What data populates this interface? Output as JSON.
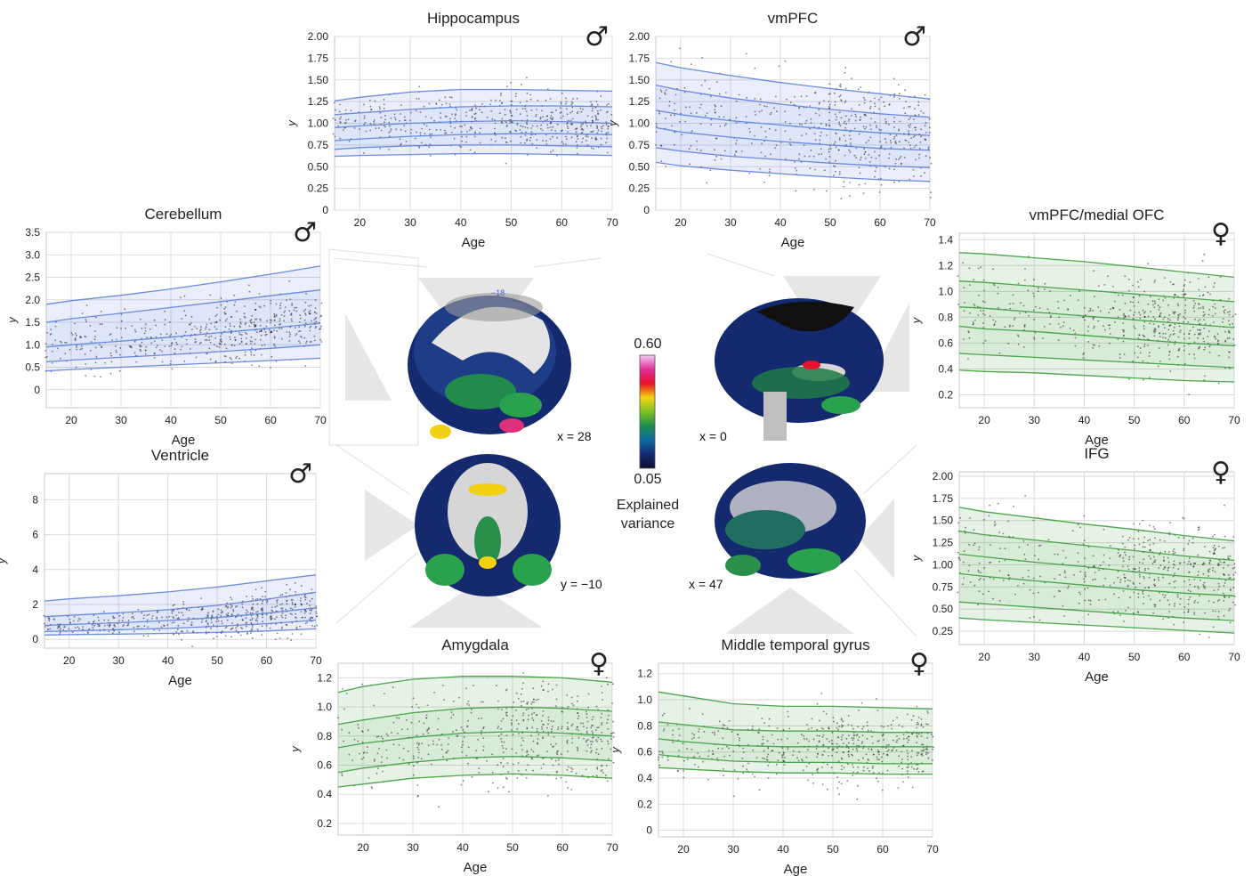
{
  "colors": {
    "male": "#5b7fe0",
    "female": "#3a9c3a",
    "grid": "#d9d9d9",
    "frame": "#c8c8c8",
    "dots": "#1a1a1a"
  },
  "brain": {
    "labels": [
      "x = 28",
      "y = −10",
      "x = 0",
      "x = 47"
    ],
    "small_label": "−18"
  },
  "colorbar": {
    "max_label": "0.60",
    "min_label": "0.05",
    "title_line1": "Explained",
    "title_line2": "variance",
    "stops": [
      "#f5c8f5",
      "#e0309a",
      "#e8102a",
      "#f4d30f",
      "#7ac228",
      "#1b8d4a",
      "#0e6aa0",
      "#142a73",
      "#0a0f2e"
    ]
  },
  "chart_data": [
    {
      "id": "hippocampus",
      "type": "line",
      "title": "Hippocampus",
      "sex": "male",
      "sex_symbol": "♂",
      "xlabel": "Age",
      "ylabel": "y",
      "xlim": [
        15,
        70
      ],
      "ylim": [
        0,
        2.0
      ],
      "xticks": [
        20,
        30,
        40,
        50,
        60,
        70
      ],
      "yticks": [
        "0",
        "0.25",
        "0.50",
        "0.75",
        "1.00",
        "1.25",
        "1.50",
        "1.75",
        "2.00"
      ],
      "x": [
        15,
        20,
        30,
        40,
        50,
        60,
        70
      ],
      "series": [
        {
          "values": [
            0.62,
            0.63,
            0.64,
            0.65,
            0.65,
            0.64,
            0.63
          ]
        },
        {
          "values": [
            0.7,
            0.72,
            0.74,
            0.75,
            0.75,
            0.74,
            0.73
          ]
        },
        {
          "values": [
            0.8,
            0.82,
            0.85,
            0.87,
            0.88,
            0.88,
            0.87
          ]
        },
        {
          "values": [
            0.95,
            0.97,
            1.0,
            1.02,
            1.03,
            1.02,
            1.0
          ]
        },
        {
          "values": [
            1.1,
            1.12,
            1.16,
            1.19,
            1.2,
            1.2,
            1.19
          ]
        },
        {
          "values": [
            1.26,
            1.3,
            1.36,
            1.39,
            1.39,
            1.38,
            1.37
          ]
        }
      ],
      "cluster": {
        "center": 0.84,
        "spread": 0.17
      }
    },
    {
      "id": "vmpfc",
      "type": "line",
      "title": "vmPFC",
      "sex": "male",
      "sex_symbol": "♂",
      "xlabel": "Age",
      "ylabel": "y",
      "xlim": [
        15,
        70
      ],
      "ylim": [
        0,
        2.0
      ],
      "xticks": [
        20,
        30,
        40,
        50,
        60,
        70
      ],
      "yticks": [
        "0",
        "0.25",
        "0.50",
        "0.75",
        "1.00",
        "1.25",
        "1.50",
        "1.75",
        "2.00"
      ],
      "x": [
        15,
        20,
        30,
        40,
        50,
        60,
        70
      ],
      "series": [
        {
          "values": [
            0.55,
            0.51,
            0.46,
            0.42,
            0.38,
            0.35,
            0.33
          ]
        },
        {
          "values": [
            0.72,
            0.68,
            0.62,
            0.58,
            0.54,
            0.51,
            0.49
          ]
        },
        {
          "values": [
            0.95,
            0.9,
            0.84,
            0.79,
            0.75,
            0.71,
            0.69
          ]
        },
        {
          "values": [
            1.15,
            1.1,
            1.03,
            0.98,
            0.93,
            0.89,
            0.86
          ]
        },
        {
          "values": [
            1.44,
            1.38,
            1.29,
            1.22,
            1.16,
            1.11,
            1.07
          ]
        },
        {
          "values": [
            1.7,
            1.64,
            1.55,
            1.47,
            1.4,
            1.34,
            1.28
          ]
        }
      ],
      "cluster": {
        "center": 0.8,
        "spread": 0.3
      }
    },
    {
      "id": "cerebellum",
      "type": "line",
      "title": "Cerebellum",
      "sex": "male",
      "sex_symbol": "♂",
      "xlabel": "Age",
      "ylabel": "y",
      "xlim": [
        15,
        70
      ],
      "ylim": [
        -0.4,
        3.5
      ],
      "xticks": [
        20,
        30,
        40,
        50,
        60,
        70
      ],
      "yticks": [
        "0",
        "0.5",
        "1.0",
        "1.5",
        "2.0",
        "2.5",
        "3.0",
        "3.5"
      ],
      "x": [
        15,
        20,
        30,
        40,
        50,
        60,
        70
      ],
      "series": [
        {
          "values": [
            0.42,
            0.45,
            0.5,
            0.55,
            0.6,
            0.65,
            0.7
          ]
        },
        {
          "values": [
            0.62,
            0.66,
            0.72,
            0.78,
            0.85,
            0.92,
            1.0
          ]
        },
        {
          "values": [
            0.95,
            1.0,
            1.08,
            1.17,
            1.27,
            1.37,
            1.48
          ]
        },
        {
          "values": [
            1.5,
            1.58,
            1.7,
            1.83,
            1.96,
            2.09,
            2.22
          ]
        },
        {
          "values": [
            1.9,
            1.98,
            2.1,
            2.24,
            2.4,
            2.57,
            2.75
          ]
        }
      ],
      "cluster": {
        "center": 0.95,
        "spread": 0.35
      }
    },
    {
      "id": "ventricle",
      "type": "line",
      "title": "Ventricle",
      "sex": "male",
      "sex_symbol": "♂",
      "xlabel": "Age",
      "ylabel": "y",
      "xlim": [
        15,
        70
      ],
      "ylim": [
        -0.5,
        9.5
      ],
      "xticks": [
        20,
        30,
        40,
        50,
        60,
        70
      ],
      "yticks": [
        "0",
        "2",
        "4",
        "6",
        "8"
      ],
      "x": [
        15,
        20,
        30,
        40,
        50,
        60,
        70
      ],
      "series": [
        {
          "values": [
            0.25,
            0.27,
            0.3,
            0.34,
            0.4,
            0.48,
            0.6
          ]
        },
        {
          "values": [
            0.45,
            0.48,
            0.55,
            0.63,
            0.75,
            0.9,
            1.1
          ]
        },
        {
          "values": [
            0.8,
            0.85,
            0.95,
            1.08,
            1.25,
            1.5,
            1.8
          ]
        },
        {
          "values": [
            1.3,
            1.38,
            1.52,
            1.7,
            1.95,
            2.3,
            2.7
          ]
        },
        {
          "values": [
            2.2,
            2.32,
            2.5,
            2.72,
            3.0,
            3.35,
            3.7
          ]
        }
      ],
      "cluster": {
        "center": 0.9,
        "spread": 0.55
      }
    },
    {
      "id": "vmpfc-ofc",
      "type": "line",
      "title": "vmPFC/medial OFC",
      "sex": "female",
      "sex_symbol": "♀",
      "xlabel": "Age",
      "ylabel": "y",
      "xlim": [
        15,
        70
      ],
      "ylim": [
        0.1,
        1.45
      ],
      "xticks": [
        20,
        30,
        40,
        50,
        60,
        70
      ],
      "yticks": [
        "0.2",
        "0.4",
        "0.6",
        "0.8",
        "1.0",
        "1.2",
        "1.4"
      ],
      "x": [
        15,
        20,
        30,
        40,
        50,
        60,
        70
      ],
      "series": [
        {
          "values": [
            0.39,
            0.38,
            0.37,
            0.35,
            0.33,
            0.31,
            0.3
          ]
        },
        {
          "values": [
            0.52,
            0.51,
            0.49,
            0.47,
            0.45,
            0.43,
            0.41
          ]
        },
        {
          "values": [
            0.73,
            0.71,
            0.69,
            0.66,
            0.63,
            0.6,
            0.58
          ]
        },
        {
          "values": [
            0.88,
            0.87,
            0.84,
            0.81,
            0.78,
            0.75,
            0.72
          ]
        },
        {
          "values": [
            1.08,
            1.07,
            1.04,
            1.01,
            0.98,
            0.95,
            0.92
          ]
        },
        {
          "values": [
            1.3,
            1.29,
            1.26,
            1.23,
            1.19,
            1.15,
            1.11
          ]
        }
      ],
      "cluster": {
        "center": 0.65,
        "spread": 0.18
      }
    },
    {
      "id": "ifg",
      "type": "line",
      "title": "IFG",
      "sex": "female",
      "sex_symbol": "♀",
      "xlabel": "Age",
      "ylabel": "y",
      "xlim": [
        15,
        70
      ],
      "ylim": [
        0.1,
        2.05
      ],
      "xticks": [
        20,
        30,
        40,
        50,
        60,
        70
      ],
      "yticks": [
        "0.25",
        "0.50",
        "0.75",
        "1.00",
        "1.25",
        "1.50",
        "1.75",
        "2.00"
      ],
      "x": [
        15,
        20,
        30,
        40,
        50,
        60,
        70
      ],
      "series": [
        {
          "values": [
            0.4,
            0.38,
            0.35,
            0.32,
            0.29,
            0.26,
            0.23
          ]
        },
        {
          "values": [
            0.58,
            0.56,
            0.52,
            0.48,
            0.44,
            0.4,
            0.37
          ]
        },
        {
          "values": [
            0.9,
            0.87,
            0.82,
            0.77,
            0.72,
            0.68,
            0.65
          ]
        },
        {
          "values": [
            1.12,
            1.09,
            1.03,
            0.98,
            0.92,
            0.87,
            0.83
          ]
        },
        {
          "values": [
            1.38,
            1.34,
            1.28,
            1.22,
            1.16,
            1.1,
            1.05
          ]
        },
        {
          "values": [
            1.65,
            1.6,
            1.53,
            1.46,
            1.4,
            1.33,
            1.27
          ]
        }
      ],
      "cluster": {
        "center": 0.78,
        "spread": 0.28
      }
    },
    {
      "id": "amygdala",
      "type": "line",
      "title": "Amygdala",
      "sex": "female",
      "sex_symbol": "♀",
      "xlabel": "Age",
      "ylabel": "y",
      "xlim": [
        15,
        70
      ],
      "ylim": [
        0.12,
        1.3
      ],
      "xticks": [
        20,
        30,
        40,
        50,
        60,
        70
      ],
      "yticks": [
        "0.2",
        "0.4",
        "0.6",
        "0.8",
        "1.0",
        "1.2"
      ],
      "x": [
        15,
        20,
        30,
        40,
        50,
        60,
        70
      ],
      "series": [
        {
          "values": [
            0.45,
            0.47,
            0.51,
            0.53,
            0.54,
            0.53,
            0.51
          ]
        },
        {
          "values": [
            0.55,
            0.58,
            0.62,
            0.65,
            0.66,
            0.65,
            0.63
          ]
        },
        {
          "values": [
            0.72,
            0.75,
            0.79,
            0.82,
            0.83,
            0.82,
            0.8
          ]
        },
        {
          "values": [
            0.88,
            0.91,
            0.96,
            0.99,
            1.0,
            0.99,
            0.97
          ]
        },
        {
          "values": [
            1.1,
            1.14,
            1.19,
            1.21,
            1.21,
            1.2,
            1.17
          ]
        }
      ],
      "cluster": {
        "center": 0.74,
        "spread": 0.18
      }
    },
    {
      "id": "mtg",
      "type": "line",
      "title": "Middle temporal gyrus",
      "sex": "female",
      "sex_symbol": "♀",
      "xlabel": "Age",
      "ylabel": "y",
      "xlim": [
        15,
        70
      ],
      "ylim": [
        -0.05,
        1.28
      ],
      "xticks": [
        20,
        30,
        40,
        50,
        60,
        70
      ],
      "yticks": [
        "0",
        "0.2",
        "0.4",
        "0.6",
        "0.8",
        "1.0",
        "1.2"
      ],
      "x": [
        15,
        20,
        30,
        40,
        50,
        60,
        70
      ],
      "series": [
        {
          "values": [
            0.48,
            0.47,
            0.45,
            0.44,
            0.44,
            0.43,
            0.43
          ]
        },
        {
          "values": [
            0.58,
            0.56,
            0.53,
            0.52,
            0.52,
            0.51,
            0.51
          ]
        },
        {
          "values": [
            0.7,
            0.68,
            0.65,
            0.64,
            0.64,
            0.64,
            0.64
          ]
        },
        {
          "values": [
            0.83,
            0.81,
            0.77,
            0.76,
            0.76,
            0.75,
            0.75
          ]
        },
        {
          "values": [
            1.06,
            1.03,
            0.97,
            0.95,
            0.95,
            0.94,
            0.93
          ]
        }
      ],
      "cluster": {
        "center": 0.64,
        "spread": 0.14
      }
    }
  ]
}
